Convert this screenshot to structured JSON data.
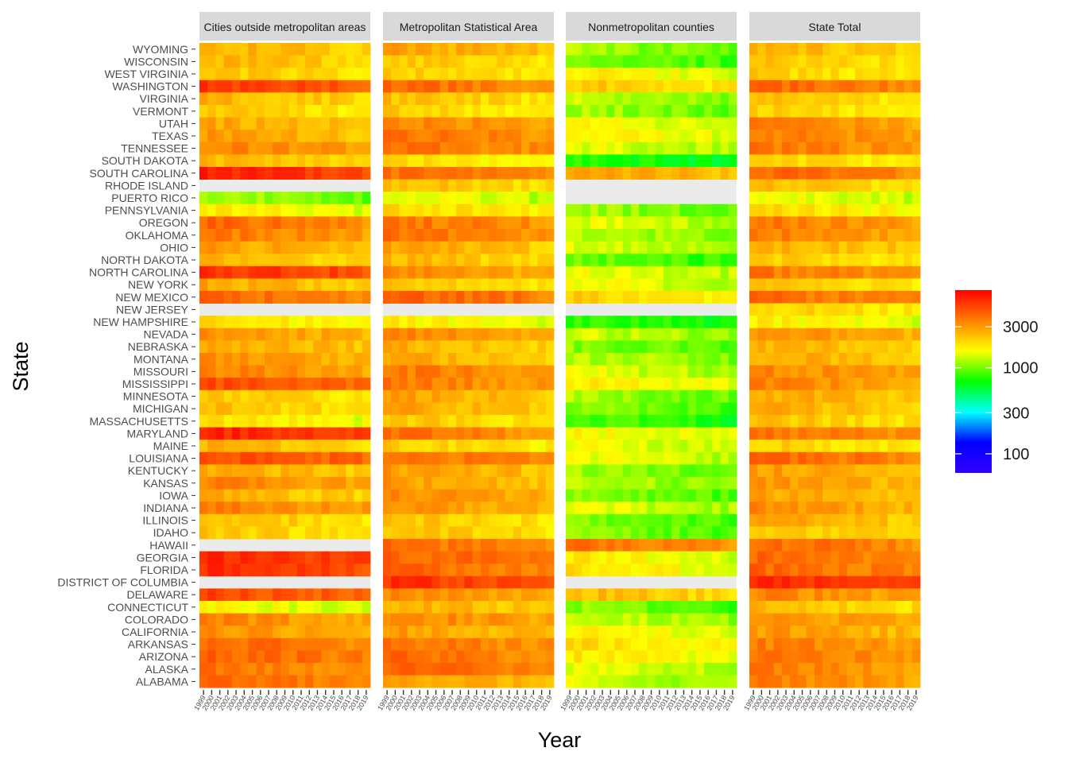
{
  "chart_data": {
    "type": "heatmap",
    "xlabel": "Year",
    "ylabel": "State",
    "facets": [
      "Cities outside metropolitan areas",
      "Metropolitan Statistical Area",
      "Nonmetropolitan counties",
      "State Total"
    ],
    "years": [
      "1999",
      "2000",
      "2001",
      "2002",
      "2003",
      "2004",
      "2005",
      "2006",
      "2007",
      "2008",
      "2009",
      "2010",
      "2011",
      "2012",
      "2013",
      "2014",
      "2015",
      "2016",
      "2017",
      "2018",
      "2019"
    ],
    "states": [
      "WYOMING",
      "WISCONSIN",
      "WEST VIRGINIA",
      "WASHINGTON",
      "VIRGINIA",
      "VERMONT",
      "UTAH",
      "TEXAS",
      "TENNESSEE",
      "SOUTH DAKOTA",
      "SOUTH CAROLINA",
      "RHODE ISLAND",
      "PUERTO RICO",
      "PENNSYLVANIA",
      "OREGON",
      "OKLAHOMA",
      "OHIO",
      "NORTH DAKOTA",
      "NORTH CAROLINA",
      "NEW YORK",
      "NEW MEXICO",
      "NEW JERSEY",
      "NEW HAMPSHIRE",
      "NEVADA",
      "NEBRASKA",
      "MONTANA",
      "MISSOURI",
      "MISSISSIPPI",
      "MINNESOTA",
      "MICHIGAN",
      "MASSACHUSETTS",
      "MARYLAND",
      "MAINE",
      "LOUISIANA",
      "KENTUCKY",
      "KANSAS",
      "IOWA",
      "INDIANA",
      "ILLINOIS",
      "IDAHO",
      "HAWAII",
      "GEORGIA",
      "FLORIDA",
      "DISTRICT OF COLUMBIA",
      "DELAWARE",
      "CONNECTICUT",
      "COLORADO",
      "CALIFORNIA",
      "ARKANSAS",
      "ARIZONA",
      "ALASKA",
      "ALABAMA"
    ],
    "legend": {
      "breaks": [
        100,
        300,
        1000,
        3000
      ],
      "labels": [
        "100",
        "300",
        "1000",
        "3000"
      ],
      "range": [
        60,
        8000
      ],
      "scale": "log",
      "colors": [
        "#3300ff",
        "#0000ff",
        "#00ffff",
        "#00ff00",
        "#ffff00",
        "#ff8000",
        "#ff0000"
      ],
      "position": "right"
    },
    "base_values": {
      "Cities outside metropolitan areas": [
        2700,
        2600,
        2300,
        5600,
        2600,
        2200,
        2800,
        3000,
        3600,
        2500,
        6500,
        null,
        1200,
        1800,
        4200,
        3800,
        3000,
        2500,
        6200,
        2800,
        4200,
        null,
        1900,
        3200,
        2900,
        3200,
        3600,
        5000,
        2300,
        2400,
        1900,
        6500,
        2600,
        5200,
        2800,
        3500,
        2700,
        3700,
        2400,
        2300,
        null,
        6500,
        6300,
        null,
        5200,
        1700,
        3500,
        3300,
        4300,
        4500,
        3900,
        4200
      ],
      "Metropolitan Statistical Area": [
        2900,
        2400,
        2200,
        4200,
        2400,
        2200,
        3600,
        4000,
        4000,
        2000,
        4000,
        2500,
        1600,
        2100,
        4000,
        4000,
        2800,
        2500,
        3300,
        2300,
        4500,
        null,
        1800,
        3400,
        2700,
        2800,
        3800,
        3800,
        2900,
        2800,
        2300,
        4000,
        2200,
        4000,
        3000,
        3000,
        3300,
        3300,
        2400,
        2400,
        4000,
        4500,
        4300,
        6000,
        3300,
        2700,
        3500,
        3000,
        4000,
        4200,
        4300,
        3000
      ],
      "Nonmetropolitan counties": [
        1200,
        1100,
        1800,
        2300,
        1300,
        1200,
        1600,
        1800,
        1500,
        800,
        3000,
        null,
        null,
        1200,
        1500,
        1300,
        1400,
        1000,
        1600,
        1600,
        2200,
        null,
        850,
        1400,
        1100,
        1300,
        1500,
        1800,
        1200,
        1100,
        900,
        1700,
        1600,
        1600,
        1200,
        1300,
        1100,
        1500,
        1100,
        1100,
        4000,
        1800,
        1900,
        null,
        2500,
        1100,
        1400,
        1700,
        2000,
        1800,
        1500,
        1400
      ],
      "State Total": [
        2600,
        2300,
        2200,
        4300,
        2300,
        2100,
        3500,
        3700,
        3800,
        2100,
        4300,
        2400,
        1600,
        2000,
        3800,
        3600,
        2800,
        2300,
        3800,
        2400,
        4100,
        2200,
        1800,
        3300,
        2700,
        2800,
        3500,
        3600,
        2800,
        2700,
        2400,
        4000,
        2200,
        4300,
        3000,
        3100,
        2900,
        3300,
        2800,
        2400,
        4200,
        4300,
        4300,
        6200,
        3500,
        2500,
        3300,
        3100,
        3700,
        4100,
        3800,
        3600
      ]
    }
  }
}
